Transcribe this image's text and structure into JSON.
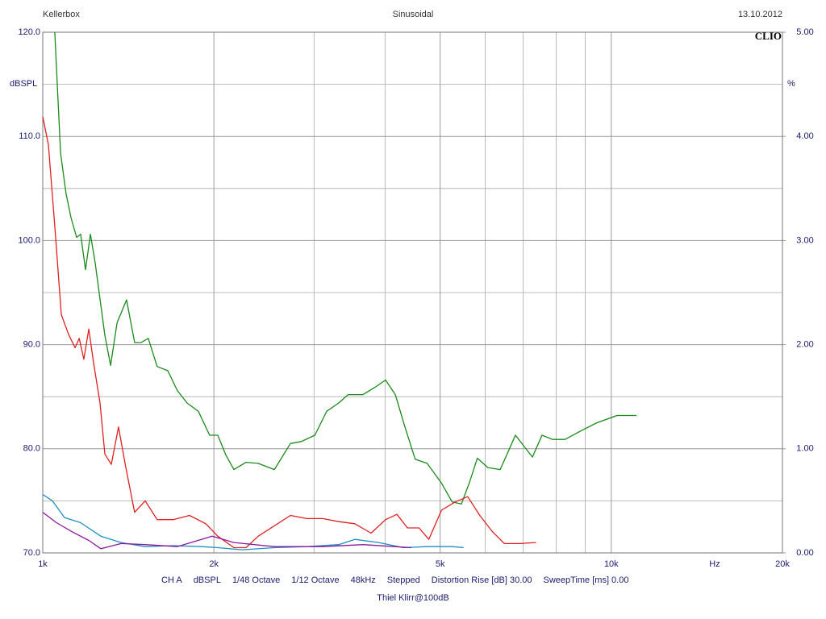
{
  "chart_data": {
    "type": "line",
    "header_left": "Kellerbox",
    "title": "Sinusoidal",
    "header_right": "13.10.2012",
    "logo": "CLIO",
    "ylabel": "dBSPL",
    "y2label": "%",
    "xlabel": "Hz",
    "footer_items": [
      "CH A",
      "dBSPL",
      "1/48 Octave",
      "1/12 Octave",
      "48kHz",
      "Stepped",
      "Distortion Rise [dB] 30.00",
      "SweepTime [ms] 0.00"
    ],
    "subtitle": "Thiel Klirr@100dB",
    "xscale": "log",
    "xlim": [
      1000,
      20000
    ],
    "xticks": [
      {
        "value": 1000,
        "label": "1k"
      },
      {
        "value": 2000,
        "label": "2k"
      },
      {
        "value": 5000,
        "label": "5k"
      },
      {
        "value": 10000,
        "label": "10k"
      },
      {
        "value": 20000,
        "label": "20k"
      }
    ],
    "xgrid_minor": [
      3000,
      4000,
      6000,
      7000,
      8000,
      9000
    ],
    "ylim": [
      70,
      120
    ],
    "yticks": [
      {
        "value": 70,
        "label": "70.0"
      },
      {
        "value": 80,
        "label": "80.0"
      },
      {
        "value": 90,
        "label": "90.0"
      },
      {
        "value": 100,
        "label": "100.0"
      },
      {
        "value": 110,
        "label": "110.0"
      },
      {
        "value": 120,
        "label": "120.0"
      }
    ],
    "ygrid_minor": [
      75,
      85,
      95,
      105,
      115
    ],
    "y2lim": [
      0,
      5
    ],
    "y2ticks": [
      {
        "value": 0,
        "label": "0.00"
      },
      {
        "value": 1,
        "label": "1.00"
      },
      {
        "value": 2,
        "label": "2.00"
      },
      {
        "value": 3,
        "label": "3.00"
      },
      {
        "value": 4,
        "label": "4.00"
      },
      {
        "value": 5,
        "label": "5.00"
      }
    ],
    "grid": true,
    "series": [
      {
        "color": "#1a8a1a",
        "x": [
          1050,
          1075,
          1099,
          1121,
          1147,
          1166,
          1189,
          1213,
          1236,
          1286,
          1316,
          1351,
          1404,
          1451,
          1489,
          1533,
          1589,
          1659,
          1724,
          1794,
          1878,
          1966,
          2032,
          2099,
          2169,
          2278,
          2392,
          2555,
          2727,
          2850,
          3010,
          3158,
          3315,
          3444,
          3658,
          3839,
          4009,
          4170,
          4336,
          4519,
          4743,
          5027,
          5248,
          5450,
          5625,
          5813,
          6064,
          6377,
          6783,
          7267,
          7553,
          7883,
          8292,
          8829,
          9434,
          10242,
          11072
        ],
        "values": [
          120,
          108.4,
          104.5,
          102.2,
          100.3,
          100.6,
          97.2,
          100.6,
          97.9,
          90.9,
          88.0,
          92.1,
          94.3,
          90.2,
          90.2,
          90.6,
          87.9,
          87.5,
          85.6,
          84.4,
          83.6,
          81.3,
          81.3,
          79.4,
          78.0,
          78.7,
          78.6,
          78.0,
          80.5,
          80.7,
          81.3,
          83.6,
          84.4,
          85.2,
          85.2,
          85.9,
          86.6,
          85.2,
          82.1,
          79.0,
          78.6,
          76.7,
          74.9,
          74.7,
          76.7,
          79.1,
          78.2,
          78.0,
          81.3,
          79.2,
          81.3,
          80.9,
          80.9,
          81.7,
          82.5,
          83.2,
          83.2
        ]
      },
      {
        "color": "#e02020",
        "x": [
          1000,
          1023,
          1050,
          1078,
          1110,
          1140,
          1159,
          1181,
          1205,
          1228,
          1261,
          1286,
          1320,
          1359,
          1400,
          1451,
          1514,
          1589,
          1696,
          1812,
          1935,
          2032,
          2169,
          2278,
          2392,
          2555,
          2727,
          2911,
          3108,
          3315,
          3539,
          3779,
          4009,
          4198,
          4379,
          4591,
          4775,
          5027,
          5315,
          5590,
          5870,
          6165,
          6485,
          6915,
          7374
        ],
        "values": [
          111.9,
          109.2,
          101.4,
          92.9,
          91.0,
          89.7,
          90.6,
          88.6,
          91.5,
          88.3,
          84.4,
          79.5,
          78.5,
          82.1,
          78.2,
          73.9,
          75.0,
          73.2,
          73.2,
          73.6,
          72.8,
          71.6,
          70.5,
          70.5,
          71.6,
          72.6,
          73.6,
          73.3,
          73.3,
          73.0,
          72.8,
          71.9,
          73.2,
          73.7,
          72.4,
          72.4,
          71.3,
          74.1,
          74.9,
          75.4,
          73.6,
          72.1,
          70.9,
          70.9,
          71.0
        ]
      },
      {
        "color": "#1e90c0",
        "x": [
          1000,
          1040,
          1092,
          1166,
          1265,
          1373,
          1514,
          1696,
          1903,
          2032,
          2241,
          2555,
          2911,
          3315,
          3539,
          3899,
          4309,
          4743,
          5248,
          5500
        ],
        "values": [
          75.6,
          75.0,
          73.4,
          72.9,
          71.6,
          71.0,
          70.6,
          70.7,
          70.6,
          70.5,
          70.3,
          70.5,
          70.6,
          70.8,
          71.3,
          71.0,
          70.5,
          70.6,
          70.6,
          70.5
        ]
      },
      {
        "color": "#8a1a9a",
        "x": [
          1000,
          1057,
          1129,
          1205,
          1265,
          1373,
          1514,
          1724,
          1986,
          2169,
          2555,
          3108,
          3658,
          4450
        ],
        "values": [
          73.9,
          72.9,
          72.0,
          71.2,
          70.4,
          70.9,
          70.8,
          70.6,
          71.6,
          71.0,
          70.6,
          70.6,
          70.8,
          70.5
        ]
      }
    ]
  }
}
